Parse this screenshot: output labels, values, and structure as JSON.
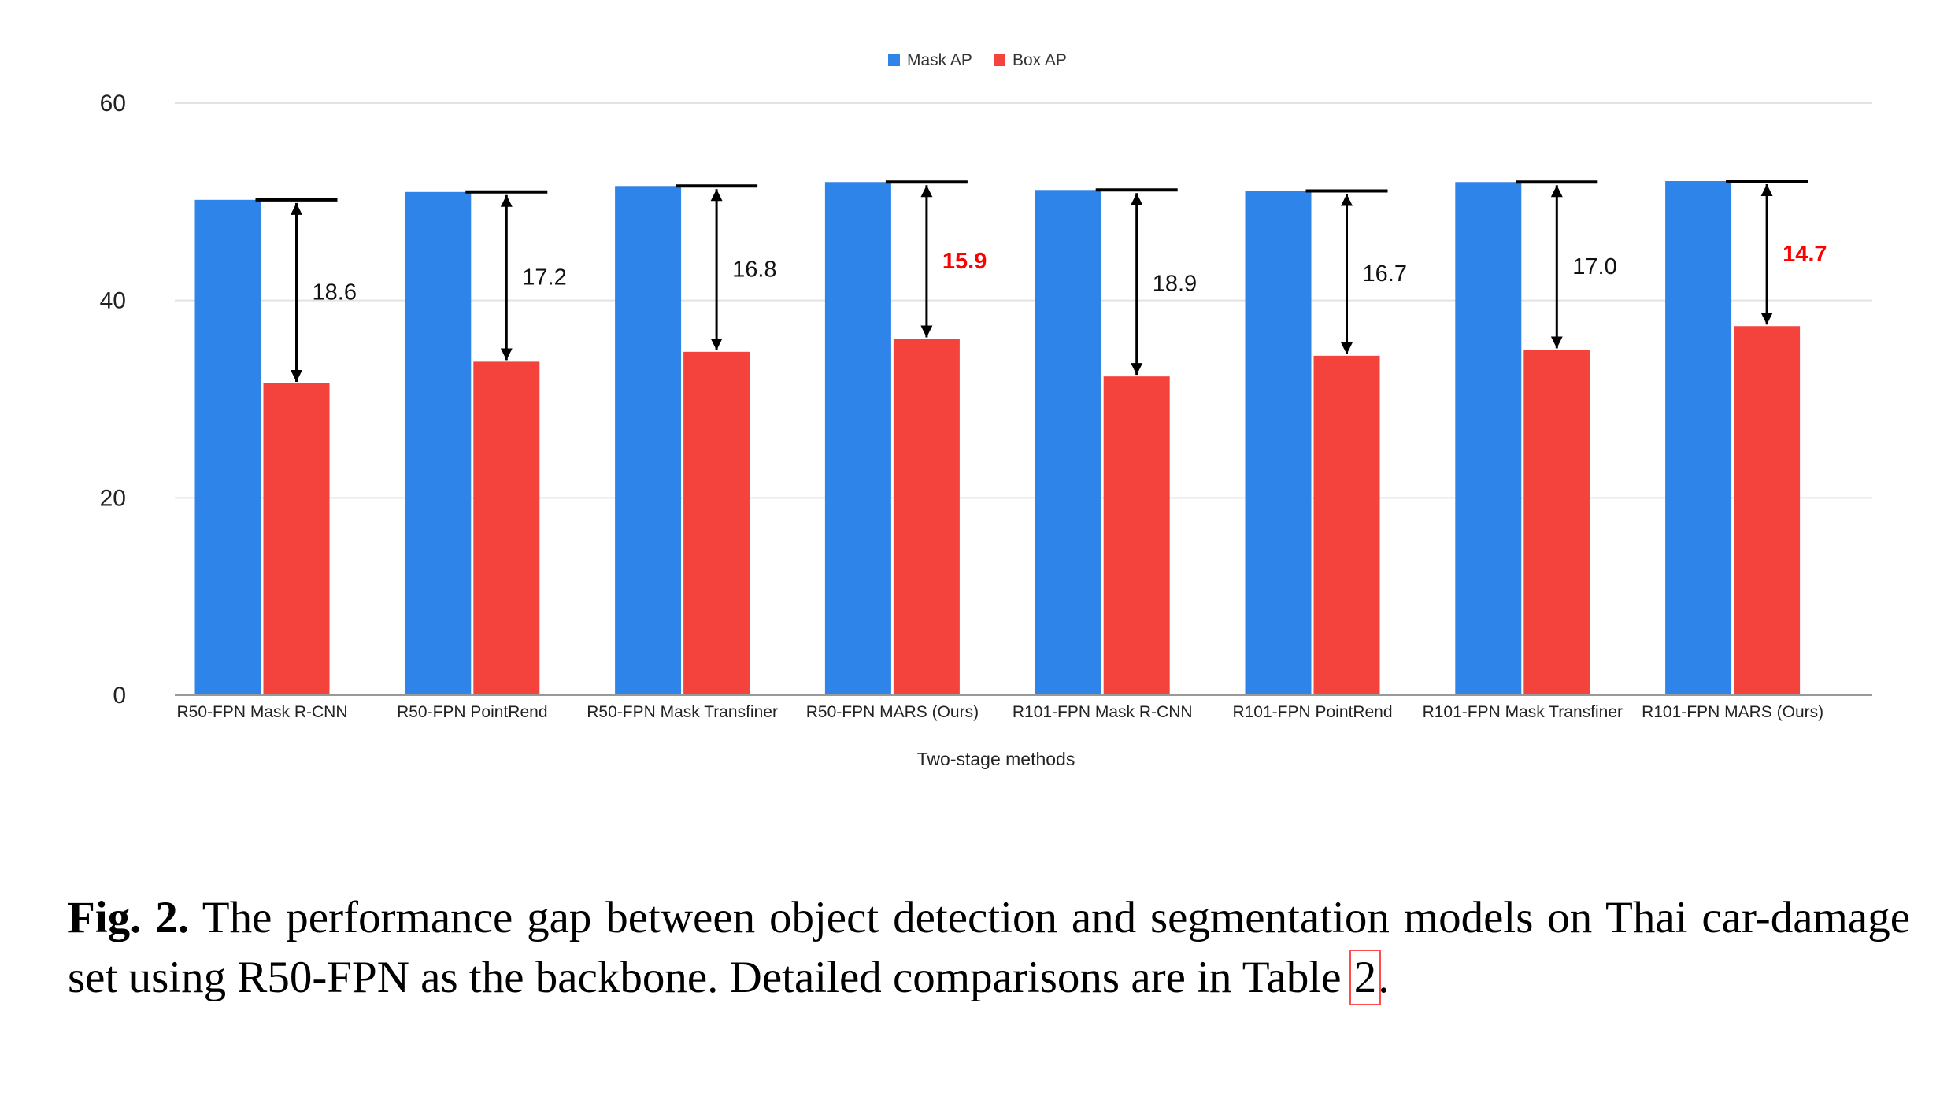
{
  "chart_data": {
    "type": "bar",
    "title": "",
    "xlabel": "Two-stage methods",
    "ylabel": "",
    "ylim": [
      0,
      60
    ],
    "yticks": [
      0,
      20,
      40,
      60
    ],
    "grid": true,
    "legend_position": "top-center",
    "categories": [
      "R50-FPN Mask R-CNN",
      "R50-FPN PointRend",
      "R50-FPN Mask Transfiner",
      "R50-FPN MARS (Ours)",
      "R101-FPN Mask R-CNN",
      "R101-FPN PointRend",
      "R101-FPN Mask Transfiner",
      "R101-FPN MARS (Ours)"
    ],
    "series": [
      {
        "name": "Mask AP",
        "color": "#2f84ea",
        "values": [
          50.2,
          51.0,
          51.6,
          52.0,
          51.2,
          51.1,
          52.0,
          52.1
        ]
      },
      {
        "name": "Box AP",
        "color": "#f4433d",
        "values": [
          31.6,
          33.8,
          34.8,
          36.1,
          32.3,
          34.4,
          35.0,
          37.4
        ]
      }
    ],
    "annotations": {
      "gap_labels": [
        "18.6",
        "17.2",
        "16.8",
        "15.9",
        "18.9",
        "16.7",
        "17.0",
        "14.7"
      ],
      "highlighted": [
        false,
        false,
        false,
        true,
        false,
        false,
        false,
        true
      ],
      "highlight_color": "#ff0000"
    }
  },
  "caption": {
    "label": "Fig. 2.",
    "text_before_ref": " The performance gap between object detection and segmentation models on Thai car-damage set using R50-FPN as the backbone. Detailed comparisons are in Table ",
    "ref": "2",
    "text_after_ref": "."
  }
}
